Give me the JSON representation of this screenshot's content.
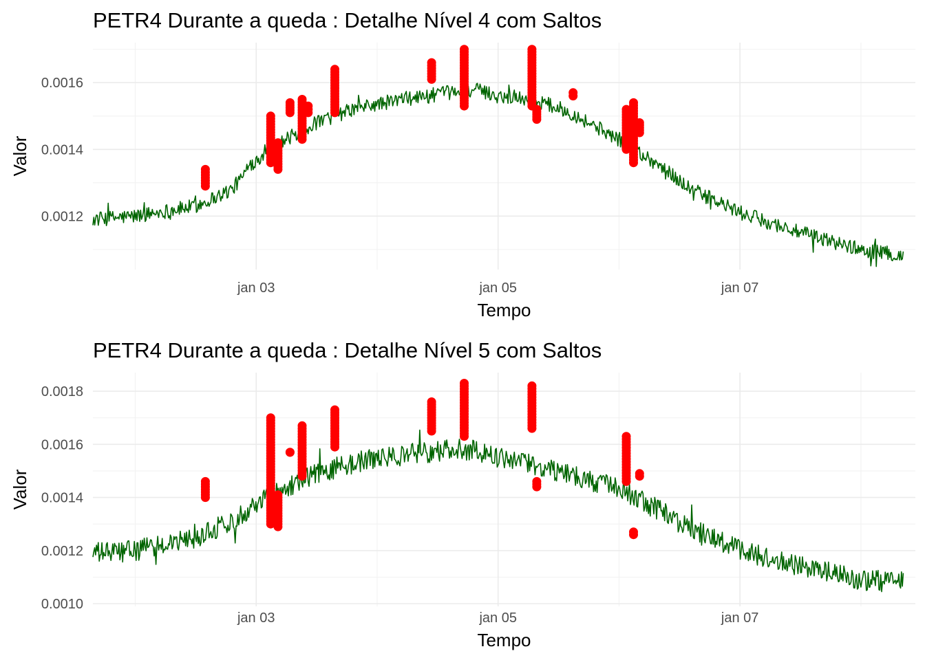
{
  "chart_data": [
    {
      "type": "line",
      "title": "PETR4 Durante a queda : Detalhe Nível 4 com Saltos",
      "xlabel": "Tempo",
      "ylabel": "Valor",
      "x_ticks": [
        "jan 03",
        "jan 05",
        "jan 07"
      ],
      "y_ticks": [
        "0.0012",
        "0.0014",
        "0.0016"
      ],
      "xlim": [
        1.65,
        8.45
      ],
      "ylim": [
        0.00104,
        0.00172
      ],
      "grid": true,
      "noise": 2.2e-05,
      "colors": {
        "line": "#006400",
        "jumps": "#ff0000"
      },
      "series": [
        {
          "x": [
            1.65,
            2.0,
            2.5,
            2.8,
            3.0,
            3.2,
            3.5,
            3.8,
            4.2,
            4.6,
            4.8,
            5.0,
            5.3,
            5.6,
            6.0,
            6.3,
            6.6,
            7.0,
            7.5,
            8.0,
            8.35
          ],
          "y": [
            0.00119,
            0.0012,
            0.00123,
            0.00128,
            0.00137,
            0.00142,
            0.00148,
            0.00152,
            0.00155,
            0.00157,
            0.00158,
            0.00156,
            0.00155,
            0.00151,
            0.00143,
            0.00136,
            0.00128,
            0.00121,
            0.00115,
            0.0011,
            0.00108
          ]
        },
        {
          "name": "Saltos",
          "clusters": [
            {
              "x": 2.58,
              "y": [
                0.00129,
                0.00134
              ]
            },
            {
              "x": 3.12,
              "y": [
                0.00136,
                0.0015
              ]
            },
            {
              "x": 3.18,
              "y": [
                0.00134,
                0.00142
              ]
            },
            {
              "x": 3.28,
              "y": [
                0.00151,
                0.00154
              ]
            },
            {
              "x": 3.38,
              "y": [
                0.00143,
                0.00155
              ]
            },
            {
              "x": 3.43,
              "y": [
                0.00151,
                0.00153
              ]
            },
            {
              "x": 3.65,
              "y": [
                0.00151,
                0.00164
              ]
            },
            {
              "x": 4.45,
              "y": [
                0.00161,
                0.00166
              ]
            },
            {
              "x": 4.72,
              "y": [
                0.00153,
                0.0017
              ]
            },
            {
              "x": 5.28,
              "y": [
                0.00153,
                0.0017
              ]
            },
            {
              "x": 5.32,
              "y": [
                0.00149,
                0.00152
              ]
            },
            {
              "x": 5.62,
              "y": [
                0.00156,
                0.00157
              ]
            },
            {
              "x": 6.06,
              "y": [
                0.0014,
                0.00152
              ]
            },
            {
              "x": 6.12,
              "y": [
                0.00136,
                0.00154
              ]
            },
            {
              "x": 6.17,
              "y": [
                0.00145,
                0.00148
              ]
            }
          ]
        }
      ]
    },
    {
      "type": "line",
      "title": "PETR4 Durante a queda : Detalhe Nível 5 com Saltos",
      "xlabel": "Tempo",
      "ylabel": "Valor",
      "x_ticks": [
        "jan 03",
        "jan 05",
        "jan 07"
      ],
      "y_ticks": [
        "0.0010",
        "0.0012",
        "0.0014",
        "0.0016",
        "0.0018"
      ],
      "xlim": [
        1.65,
        8.45
      ],
      "ylim": [
        0.00099,
        0.00187
      ],
      "grid": true,
      "noise": 4e-05,
      "colors": {
        "line": "#006400",
        "jumps": "#ff0000"
      },
      "series": [
        {
          "x": [
            1.65,
            2.0,
            2.5,
            2.8,
            3.0,
            3.2,
            3.5,
            3.8,
            4.2,
            4.6,
            4.8,
            5.0,
            5.3,
            5.6,
            6.0,
            6.3,
            6.6,
            7.0,
            7.5,
            8.0,
            8.35
          ],
          "y": [
            0.00119,
            0.0012,
            0.00125,
            0.00131,
            0.00138,
            0.00143,
            0.00149,
            0.00153,
            0.00156,
            0.00158,
            0.00158,
            0.00155,
            0.00152,
            0.00149,
            0.00143,
            0.00136,
            0.00128,
            0.0012,
            0.00114,
            0.00109,
            0.00108
          ]
        },
        {
          "name": "Saltos",
          "clusters": [
            {
              "x": 2.58,
              "y": [
                0.0014,
                0.00146
              ]
            },
            {
              "x": 3.12,
              "y": [
                0.0013,
                0.0017
              ]
            },
            {
              "x": 3.18,
              "y": [
                0.00129,
                0.00141
              ]
            },
            {
              "x": 3.28,
              "y": [
                0.00157,
                0.00157
              ]
            },
            {
              "x": 3.38,
              "y": [
                0.00148,
                0.00167
              ]
            },
            {
              "x": 3.65,
              "y": [
                0.00159,
                0.00173
              ]
            },
            {
              "x": 4.45,
              "y": [
                0.00165,
                0.00176
              ]
            },
            {
              "x": 4.72,
              "y": [
                0.00163,
                0.00183
              ]
            },
            {
              "x": 5.28,
              "y": [
                0.00166,
                0.00182
              ]
            },
            {
              "x": 5.32,
              "y": [
                0.00144,
                0.00146
              ]
            },
            {
              "x": 6.06,
              "y": [
                0.00146,
                0.00163
              ]
            },
            {
              "x": 6.12,
              "y": [
                0.00126,
                0.00127
              ]
            },
            {
              "x": 6.17,
              "y": [
                0.00148,
                0.00149
              ]
            }
          ]
        }
      ]
    }
  ]
}
